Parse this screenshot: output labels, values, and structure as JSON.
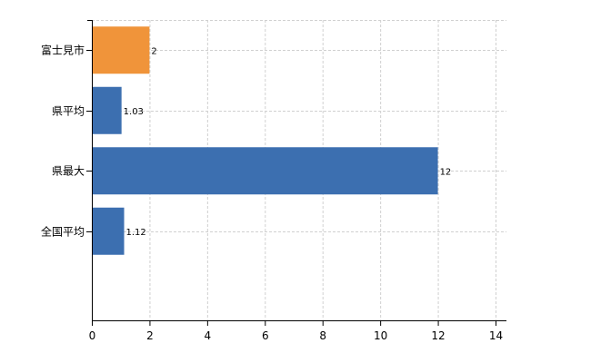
{
  "chart_data": {
    "type": "bar",
    "orientation": "horizontal",
    "categories": [
      "富士見市",
      "県平均",
      "県最大",
      "全国平均"
    ],
    "values": [
      2,
      1.03,
      12,
      1.12
    ],
    "data_labels": [
      "2",
      "1.03",
      "12",
      "1.12"
    ],
    "bar_colors": [
      "#f0943a",
      "#3c6fb0",
      "#3c6fb0",
      "#3c6fb0"
    ],
    "xlim": [
      0,
      14
    ],
    "x_ticks": [
      0,
      2,
      4,
      6,
      8,
      10,
      12,
      14
    ],
    "x_tick_labels": [
      "0",
      "2",
      "4",
      "6",
      "8",
      "10",
      "12",
      "14"
    ],
    "grid": true,
    "title": "",
    "xlabel": "",
    "ylabel": ""
  }
}
